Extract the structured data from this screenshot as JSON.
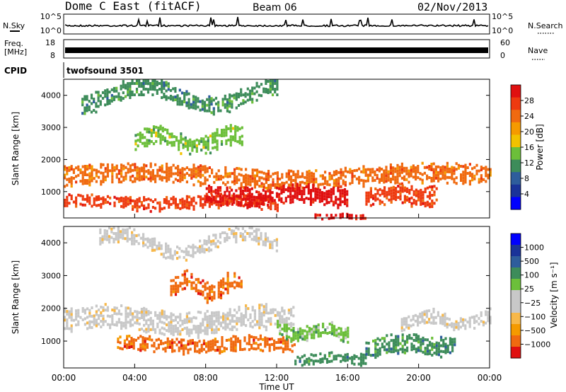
{
  "header": {
    "radar": "Dome C East (fitACF)",
    "beam": "Beam 06",
    "date": "02/Nov/2013"
  },
  "summary_panels": {
    "nsky_label": "N.Sky",
    "nsky_ticks": [
      "10^5",
      "10^0"
    ],
    "nsearch_label": "N.Search",
    "nsearch_ticks": [
      "10^5",
      "10^0"
    ],
    "freq_label_1": "Freq.",
    "freq_label_2": "[MHz]",
    "freq_ticks": [
      "18",
      "8"
    ],
    "nave_label": "Nave",
    "nave_ticks": [
      "60",
      "0"
    ],
    "cpid_label": "CPID",
    "cpid_value": "twofsound 3501"
  },
  "colors": {
    "power_scale": [
      "#0000ff",
      "#1a3399",
      "#2e5d9c",
      "#3d8c5a",
      "#6cbf3a",
      "#f2c200",
      "#f59a00",
      "#f06a10",
      "#ee3a10",
      "#e01010"
    ],
    "velocity_scale": [
      "#e01010",
      "#f06a10",
      "#f59a00",
      "#f7b84a",
      "#c8c8c8",
      "#c8c8c8",
      "#6cbf3a",
      "#3d8c5a",
      "#2e5d9c",
      "#1a3399",
      "#0000ff"
    ]
  },
  "chart_data": [
    {
      "type": "heatmap",
      "title": "",
      "xlabel": "",
      "ylabel": "Slant Range [km]",
      "colorbar_label": "Power [dB]",
      "colorbar_ticks": [
        "28",
        "24",
        "20",
        "16",
        "12",
        "8",
        "4"
      ],
      "xlim": [
        "00:00",
        "24:00"
      ],
      "ylim": [
        180,
        4500
      ],
      "y_ticks": [
        "4000",
        "3000",
        "2000",
        "1000"
      ],
      "bands": [
        {
          "x_start": 0,
          "x_end": 24,
          "range_center": 1500,
          "range_width": 500,
          "value_db": 20
        },
        {
          "x_start": 0,
          "x_end": 12,
          "range_center": 700,
          "range_width": 350,
          "value_db": 24
        },
        {
          "x_start": 8,
          "x_end": 16,
          "range_center": 900,
          "range_width": 500,
          "value_db": 28
        },
        {
          "x_start": 14,
          "x_end": 17,
          "range_center": 250,
          "range_width": 120,
          "value_db": 28
        },
        {
          "x_start": 17,
          "x_end": 21,
          "range_center": 900,
          "range_width": 500,
          "value_db": 24
        },
        {
          "x_start": 1,
          "x_end": 12,
          "range_center": 4000,
          "range_width": 500,
          "value_db": 8
        },
        {
          "x_start": 4,
          "x_end": 10,
          "range_center": 2600,
          "range_width": 500,
          "value_db": 12
        }
      ]
    },
    {
      "type": "heatmap",
      "title": "",
      "xlabel": "Time UT",
      "ylabel": "Slant Range [km]",
      "colorbar_label": "Velocity [m s⁻¹]",
      "colorbar_ticks": [
        "1000",
        "500",
        "100",
        "25",
        "−25",
        "−100",
        "−500",
        "−1000"
      ],
      "x_ticks": [
        "00:00",
        "04:00",
        "08:00",
        "12:00",
        "16:00",
        "20:00",
        "00:00"
      ],
      "xlim": [
        "00:00",
        "24:00"
      ],
      "ylim": [
        180,
        4500
      ],
      "y_ticks": [
        "4000",
        "3000",
        "2000",
        "1000"
      ],
      "bands": [
        {
          "x_start": 0,
          "x_end": 13,
          "range_center": 1650,
          "range_width": 600,
          "value_ms": 0
        },
        {
          "x_start": 3,
          "x_end": 13,
          "range_center": 900,
          "range_width": 400,
          "value_ms": -100
        },
        {
          "x_start": 12,
          "x_end": 16,
          "range_center": 1300,
          "range_width": 400,
          "value_ms": 100
        },
        {
          "x_start": 13,
          "x_end": 17,
          "range_center": 500,
          "range_width": 300,
          "value_ms": 500
        },
        {
          "x_start": 17,
          "x_end": 22,
          "range_center": 900,
          "range_width": 500,
          "value_ms": 500
        },
        {
          "x_start": 19,
          "x_end": 24,
          "range_center": 1650,
          "range_width": 400,
          "value_ms": 0
        },
        {
          "x_start": 6,
          "x_end": 10,
          "range_center": 2700,
          "range_width": 500,
          "value_ms": -100
        },
        {
          "x_start": 2,
          "x_end": 12,
          "range_center": 4000,
          "range_width": 400,
          "value_ms": 0
        }
      ]
    }
  ]
}
